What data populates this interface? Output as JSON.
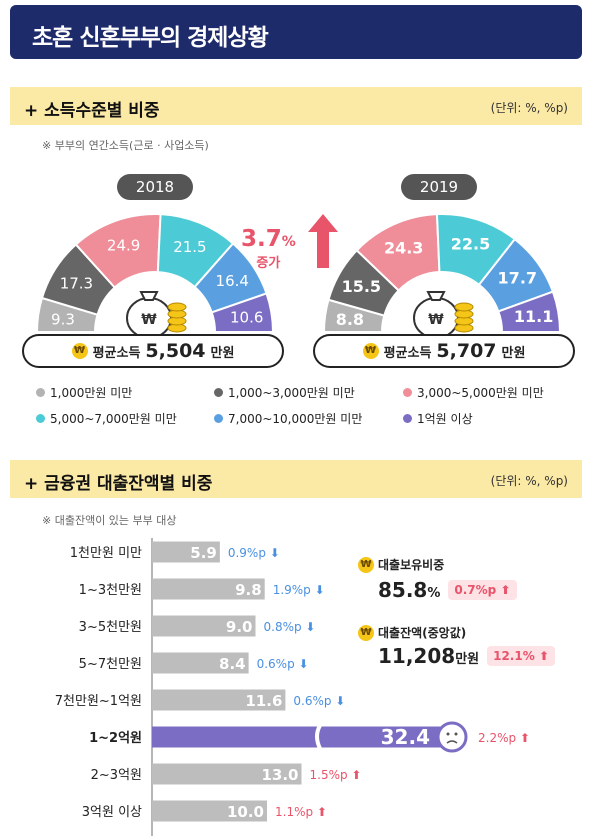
{
  "title": "초혼 신혼부부의 경제상황",
  "income_section": {
    "title": "+ 소득수준별 비중",
    "unit": "(단위: %, %p)",
    "note": "※ 부부의 연간소득(근로 · 사업소득)",
    "increase_value": "3.7",
    "increase_unit": "%",
    "increase_word": "증가",
    "avg_label": "평균소득",
    "avg_unit": "만원",
    "coin_symbol": "₩"
  },
  "loan_section": {
    "title": "+ 금융권 대출잔액별 비중",
    "unit": "(단위: %, %p)",
    "note": "※ 대출잔액이 있는 부부 대상",
    "holding_label": "대출보유비중",
    "holding_value": "85.8",
    "holding_unit": "%",
    "holding_change": "0.7%p",
    "balance_label": "대출잔액(중앙값)",
    "balance_value": "11,208",
    "balance_unit": "만원",
    "balance_change": "12.1%"
  },
  "colors": {
    "navy": "#1e2b6b",
    "section_bg": "#fbe9a6",
    "under_1000": "#b3b3b3",
    "1000_3000": "#666666",
    "3000_5000": "#ef8e98",
    "5000_7000": "#4ccbd6",
    "7000_10000": "#5aa0e0",
    "over_1eok": "#7b6dc3",
    "bar_gray": "#bdbdbd",
    "bar_highlight": "#7b6dc3",
    "down_blue": "#4a90e2",
    "up_pink": "#e8546a"
  },
  "chart_data": [
    {
      "type": "pie",
      "title": "2018",
      "categories": [
        "1,000만원 미만",
        "1,000~3,000만원 미만",
        "3,000~5,000만원 미만",
        "5,000~7,000만원 미만",
        "7,000~10,000만원 미만",
        "1억원 이상"
      ],
      "values": [
        9.3,
        17.3,
        24.9,
        21.5,
        16.4,
        10.6
      ],
      "avg_income": "5,504"
    },
    {
      "type": "pie",
      "title": "2019",
      "categories": [
        "1,000만원 미만",
        "1,000~3,000만원 미만",
        "3,000~5,000만원 미만",
        "5,000~7,000만원 미만",
        "7,000~10,000만원 미만",
        "1억원 이상"
      ],
      "values": [
        8.8,
        15.5,
        24.3,
        22.5,
        17.7,
        11.1
      ],
      "avg_income": "5,707"
    },
    {
      "type": "bar",
      "categories": [
        "1천만원 미만",
        "1~3천만원",
        "3~5천만원",
        "5~7천만원",
        "7천만원~1억원",
        "1~2억원",
        "2~3억원",
        "3억원 이상"
      ],
      "values": [
        5.9,
        9.8,
        9.0,
        8.4,
        11.6,
        32.4,
        13.0,
        10.0
      ],
      "changes": [
        "0.9%p",
        "1.9%p",
        "0.8%p",
        "0.6%p",
        "0.6%p",
        "2.2%p",
        "1.5%p",
        "1.1%p"
      ],
      "directions": [
        "down",
        "down",
        "down",
        "down",
        "down",
        "up",
        "up",
        "up"
      ],
      "highlight": "1~2억원"
    }
  ],
  "legend": [
    {
      "label": "1,000만원 미만",
      "color": "#b3b3b3"
    },
    {
      "label": "1,000~3,000만원 미만",
      "color": "#666666"
    },
    {
      "label": "3,000~5,000만원 미만",
      "color": "#ef8e98"
    },
    {
      "label": "5,000~7,000만원 미만",
      "color": "#4ccbd6"
    },
    {
      "label": "7,000~10,000만원 미만",
      "color": "#5aa0e0"
    },
    {
      "label": "1억원 이상",
      "color": "#7b6dc3"
    }
  ]
}
